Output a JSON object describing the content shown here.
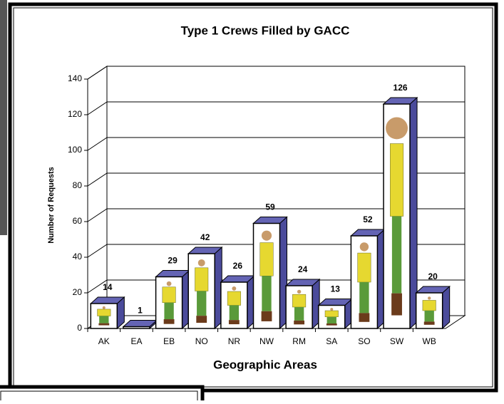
{
  "chart_data": {
    "type": "bar3d",
    "title": "Type 1 Crews Filled by GACC",
    "x_label": "Geographic Areas",
    "y_label": "Number of Requests",
    "categories": [
      "AK",
      "EA",
      "EB",
      "NO",
      "NR",
      "NW",
      "RM",
      "SA",
      "SO",
      "SW",
      "WB"
    ],
    "values": [
      14,
      1,
      29,
      42,
      26,
      59,
      24,
      13,
      52,
      126,
      20
    ],
    "ylim": [
      0,
      140
    ],
    "yticks": [
      0,
      20,
      40,
      60,
      80,
      100,
      120,
      140
    ],
    "grid": true,
    "color": "#4b4b9b"
  }
}
